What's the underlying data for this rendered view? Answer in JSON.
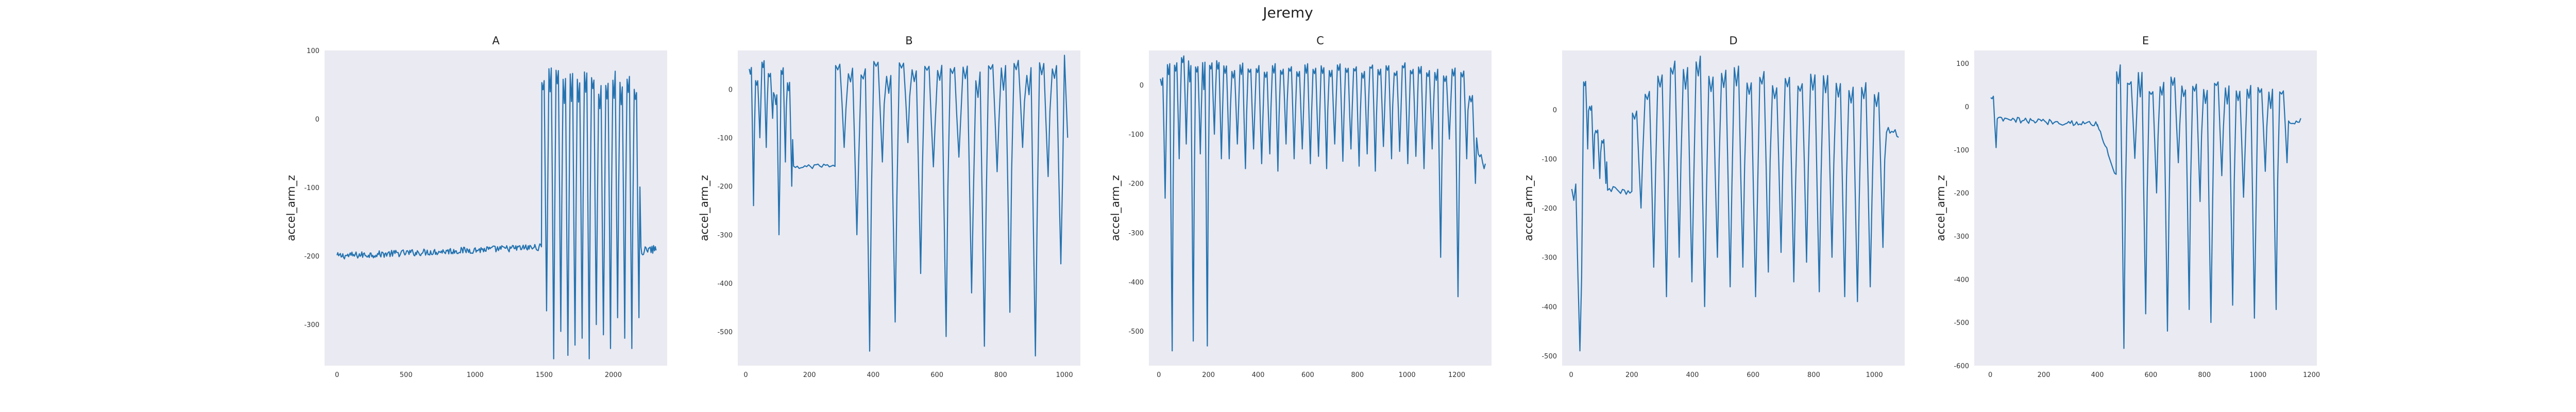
{
  "figure": {
    "title": "Jeremy"
  },
  "style": {
    "plot_bg": "#eaeaf2",
    "line_color": "#2473b0",
    "grid": false
  },
  "chart_data": [
    {
      "type": "line",
      "title": "A",
      "ylabel": "accel_arm_z",
      "xlabel": "",
      "xlim": [
        -90,
        2390
      ],
      "ylim": [
        -360,
        100
      ],
      "xticks": [
        0,
        500,
        1000,
        1500,
        2000
      ],
      "yticks": [
        -300,
        -200,
        -100,
        0,
        100
      ],
      "segments": [
        {
          "x0": 0,
          "x1": 1480,
          "y0": -200,
          "y1": -187,
          "noise": 5
        },
        {
          "x0": 1480,
          "x1": 2200,
          "osc": true,
          "peaks": [
            60,
            80,
            75,
            65,
            70,
            60,
            75,
            65,
            50,
            60,
            70,
            55,
            65,
            45
          ],
          "troughs": [
            -280,
            -350,
            -310,
            -345,
            -330,
            -320,
            -350,
            -300,
            -315,
            -335,
            -290,
            -320,
            -335,
            -290
          ]
        },
        {
          "x0": 2200,
          "x1": 2310,
          "y0": -193,
          "y1": -190,
          "noise": 6
        }
      ]
    },
    {
      "type": "line",
      "title": "B",
      "ylabel": "accel_arm_z",
      "xlabel": "",
      "xlim": [
        -25,
        1050
      ],
      "ylim": [
        -570,
        80
      ],
      "xticks": [
        0,
        200,
        400,
        600,
        800,
        1000
      ],
      "yticks": [
        -500,
        -400,
        -300,
        -200,
        -100,
        0
      ],
      "segments": [
        {
          "x0": 10,
          "x1": 150,
          "osc": true,
          "peaks": [
            50,
            20,
            60,
            35,
            -10,
            45,
            15
          ],
          "troughs": [
            -240,
            -100,
            -120,
            -60,
            -300,
            -150,
            -200
          ]
        },
        {
          "x0": 150,
          "x1": 280,
          "y0": -160,
          "y1": -160,
          "noise": 6
        },
        {
          "x0": 280,
          "x1": 1000,
          "osc": true,
          "peaks": [
            55,
            45,
            50,
            60,
            40,
            55,
            45,
            50,
            60,
            45,
            55,
            40,
            55,
            50,
            60,
            45,
            55,
            50
          ],
          "troughs": [
            -120,
            -300,
            -540,
            -150,
            -480,
            -110,
            -380,
            -160,
            -510,
            -140,
            -420,
            -530,
            -170,
            -460,
            -120,
            -550,
            -180,
            -360
          ]
        },
        {
          "x0": 1000,
          "x1": 1010,
          "y0": 70,
          "y1": -100,
          "noise": 0
        }
      ]
    },
    {
      "type": "line",
      "title": "C",
      "ylabel": "accel_arm_z",
      "xlabel": "",
      "xlim": [
        -40,
        1340
      ],
      "ylim": [
        -570,
        70
      ],
      "xticks": [
        0,
        200,
        400,
        600,
        800,
        1000,
        1200
      ],
      "yticks": [
        -500,
        -400,
        -300,
        -200,
        -100,
        0
      ],
      "segments": [
        {
          "x0": 5,
          "x1": 260,
          "osc": true,
          "peaks": [
            20,
            55,
            45,
            60,
            50,
            40,
            55,
            45,
            50
          ],
          "troughs": [
            -230,
            -540,
            -150,
            -120,
            -520,
            -140,
            -530,
            -100,
            -150
          ]
        },
        {
          "x0": 260,
          "x1": 1110,
          "osc": true,
          "peaks": [
            40,
            30,
            45,
            35,
            40,
            30,
            45,
            35,
            40,
            30,
            45,
            35,
            40,
            30,
            45,
            35,
            40,
            30,
            45,
            35,
            40,
            30,
            45,
            35,
            40,
            30
          ],
          "troughs": [
            -150,
            -120,
            -170,
            -130,
            -160,
            -140,
            -175,
            -120,
            -150,
            -130,
            -160,
            -145,
            -170,
            -120,
            -155,
            -130,
            -165,
            -140,
            -175,
            -125,
            -150,
            -135,
            -160,
            -145,
            -170,
            -130
          ]
        },
        {
          "x0": 1110,
          "x1": 1320,
          "osc": true,
          "peaks": [
            40,
            20,
            45,
            30,
            -20,
            -140
          ],
          "troughs": [
            -350,
            -110,
            -430,
            -150,
            -200,
            -170
          ]
        }
      ]
    },
    {
      "type": "line",
      "title": "D",
      "ylabel": "accel_arm_z",
      "xlabel": "",
      "xlim": [
        -30,
        1100
      ],
      "ylim": [
        -520,
        120
      ],
      "xticks": [
        0,
        200,
        400,
        600,
        800,
        1000
      ],
      "yticks": [
        -500,
        -400,
        -300,
        -200,
        -100,
        0
      ],
      "segments": [
        {
          "x0": 0,
          "x1": 40,
          "osc": true,
          "peaks": [
            -150
          ],
          "troughs": [
            -490
          ]
        },
        {
          "x0": 40,
          "x1": 120,
          "osc": true,
          "peaks": [
            60,
            10,
            -40,
            -60
          ],
          "troughs": [
            -80,
            -120,
            -140,
            -150
          ]
        },
        {
          "x0": 120,
          "x1": 200,
          "y0": -160,
          "y1": -170,
          "noise": 6
        },
        {
          "x0": 200,
          "x1": 1040,
          "osc": true,
          "peaks": [
            0,
            40,
            80,
            100,
            90,
            110,
            70,
            80,
            90,
            60,
            80,
            50,
            70,
            60,
            80,
            70,
            60,
            50,
            60,
            40
          ],
          "troughs": [
            -200,
            -320,
            -380,
            -300,
            -350,
            -400,
            -300,
            -360,
            -320,
            -380,
            -330,
            -290,
            -350,
            -310,
            -370,
            -300,
            -380,
            -390,
            -360,
            -280
          ]
        },
        {
          "x0": 1040,
          "x1": 1080,
          "y0": -40,
          "y1": -50,
          "noise": 8
        }
      ]
    },
    {
      "type": "line",
      "title": "E",
      "ylabel": "accel_arm_z",
      "xlabel": "",
      "xlim": [
        -60,
        1220
      ],
      "ylim": [
        -600,
        130
      ],
      "xticks": [
        0,
        200,
        400,
        600,
        800,
        1000,
        1200
      ],
      "yticks": [
        -600,
        -500,
        -400,
        -300,
        -200,
        -100,
        0,
        100
      ],
      "segments": [
        {
          "x0": 0,
          "x1": 30,
          "osc": true,
          "peaks": [
            25
          ],
          "troughs": [
            -95
          ]
        },
        {
          "x0": 30,
          "x1": 400,
          "y0": -30,
          "y1": -40,
          "noise": 7
        },
        {
          "x0": 400,
          "x1": 470,
          "y0": -40,
          "y1": -160,
          "noise": 5
        },
        {
          "x0": 470,
          "x1": 1120,
          "osc": true,
          "peaks": [
            100,
            60,
            80,
            40,
            60,
            70,
            50,
            55,
            45,
            60,
            50,
            40,
            55,
            45,
            50,
            40
          ],
          "troughs": [
            -560,
            -120,
            -480,
            -200,
            -520,
            -130,
            -470,
            -220,
            -500,
            -160,
            -460,
            -210,
            -490,
            -150,
            -470,
            -130
          ]
        },
        {
          "x0": 1120,
          "x1": 1160,
          "y0": -40,
          "y1": -30,
          "noise": 8
        }
      ]
    }
  ]
}
